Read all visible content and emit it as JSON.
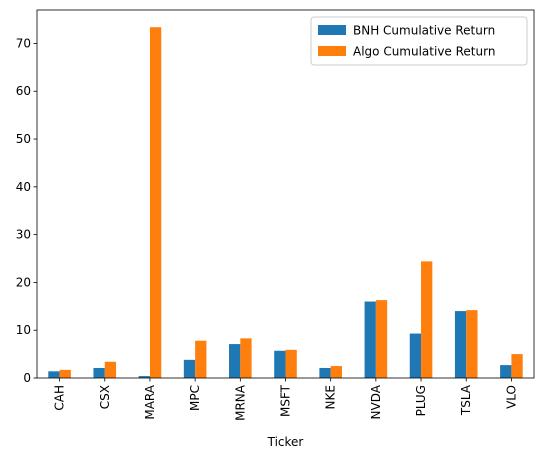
{
  "chart_data": {
    "type": "bar",
    "title": "",
    "xlabel": "Ticker",
    "ylabel": "",
    "categories": [
      "CAH",
      "CSX",
      "MARA",
      "MPC",
      "MRNA",
      "MSFT",
      "NKE",
      "NVDA",
      "PLUG",
      "TSLA",
      "VLO"
    ],
    "series": [
      {
        "name": "BNH Cumulative Return",
        "color": "#1f77b4",
        "values": [
          1.4,
          2.1,
          0.4,
          3.8,
          7.1,
          5.7,
          2.1,
          16.0,
          9.3,
          14.0,
          2.7
        ]
      },
      {
        "name": "Algo Cumulative Return",
        "color": "#ff7f0e",
        "values": [
          1.7,
          3.4,
          73.4,
          7.8,
          8.3,
          5.9,
          2.5,
          16.3,
          24.4,
          14.2,
          5.0
        ]
      }
    ],
    "ylim": [
      0,
      77
    ],
    "yticks": [
      0,
      10,
      20,
      30,
      40,
      50,
      60,
      70
    ],
    "grid": false,
    "legend_position": "top-right"
  }
}
